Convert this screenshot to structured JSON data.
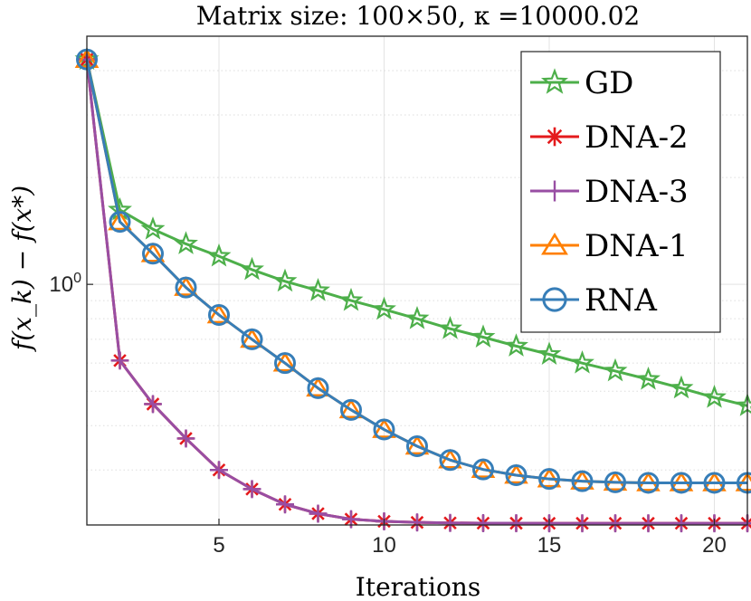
{
  "chart_data": {
    "type": "line",
    "title": "Matrix size: 100×50, κ =10000.02",
    "xlabel": "Iterations",
    "ylabel": "f(x_k) − f(x*)",
    "xlim": [
      1,
      21
    ],
    "yscale": "log",
    "ylim": [
      0.21,
      5.0
    ],
    "grid": true,
    "x_ticks": [
      5,
      10,
      15,
      20
    ],
    "y_ticks": [
      {
        "value": 1.0,
        "label": "10^0"
      }
    ],
    "legend_position": "top-right",
    "x": [
      1,
      2,
      3,
      4,
      5,
      6,
      7,
      8,
      9,
      10,
      11,
      12,
      13,
      14,
      15,
      16,
      17,
      18,
      19,
      20,
      21
    ],
    "series": [
      {
        "name": "GD",
        "color": "#4daf4a",
        "marker": "star",
        "values": [
          4.3,
          1.62,
          1.43,
          1.3,
          1.2,
          1.1,
          1.02,
          0.96,
          0.9,
          0.85,
          0.8,
          0.75,
          0.71,
          0.67,
          0.635,
          0.6,
          0.57,
          0.54,
          0.51,
          0.48,
          0.455
        ]
      },
      {
        "name": "DNA-2",
        "color": "#e41a1c",
        "marker": "asterisk",
        "values": [
          4.3,
          0.61,
          0.46,
          0.368,
          0.3,
          0.265,
          0.24,
          0.226,
          0.218,
          0.215,
          0.2135,
          0.2128,
          0.2125,
          0.2124,
          0.2123,
          0.2123,
          0.2123,
          0.2123,
          0.2123,
          0.2123,
          0.2123
        ]
      },
      {
        "name": "DNA-3",
        "color": "#984ea3",
        "marker": "plus",
        "values": [
          4.3,
          0.61,
          0.46,
          0.368,
          0.3,
          0.265,
          0.24,
          0.226,
          0.218,
          0.215,
          0.2135,
          0.2128,
          0.2125,
          0.2124,
          0.2123,
          0.2123,
          0.2123,
          0.2123,
          0.2123,
          0.2123,
          0.2123
        ]
      },
      {
        "name": "DNA-1",
        "color": "#ff7f00",
        "marker": "triangle",
        "values": [
          4.3,
          1.5,
          1.22,
          0.98,
          0.82,
          0.7,
          0.6,
          0.51,
          0.443,
          0.39,
          0.35,
          0.32,
          0.301,
          0.29,
          0.283,
          0.279,
          0.277,
          0.276,
          0.276,
          0.276,
          0.276
        ]
      },
      {
        "name": "RNA",
        "color": "#377eb8",
        "marker": "circle",
        "values": [
          4.3,
          1.5,
          1.22,
          0.98,
          0.82,
          0.7,
          0.6,
          0.51,
          0.443,
          0.39,
          0.35,
          0.32,
          0.301,
          0.29,
          0.283,
          0.279,
          0.277,
          0.276,
          0.276,
          0.276,
          0.276
        ]
      }
    ]
  }
}
